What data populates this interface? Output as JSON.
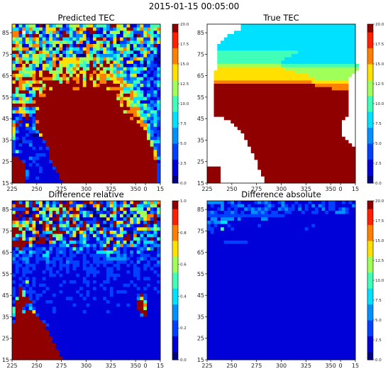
{
  "figure": {
    "suptitle": "2015-01-15 00:05:00"
  },
  "chart_data": [
    {
      "type": "heatmap",
      "title": "Predicted TEC",
      "xlabel": "",
      "ylabel": "",
      "x_ticks": [
        225,
        250,
        275,
        300,
        325,
        350,
        0,
        15
      ],
      "y_ticks": [
        15,
        25,
        35,
        45,
        55,
        65,
        75,
        85
      ],
      "colormap": "jet",
      "colorbar_range": [
        0,
        20
      ],
      "colorbar_ticks": [
        "0.0",
        "2.5",
        "5.0",
        "7.5",
        "10.0",
        "12.5",
        "15.0",
        "17.5",
        "20.0"
      ],
      "cells_x": 44,
      "cells_y": 48,
      "cells": [
        "hbfcfggbjahdeggbdgghdfghdfffdjjhgchbbdhccfff",
        "eecieiffgchhhjdccegjihjjhcbedcdfhgjjdfieifgi",
        "iij_dfcgbdhfidbjdfcihcbjjbbgbgggbfheccchefbg",
        "iicfjcjjfcbfcgcjjfcddhbaeedbedfbbgfeajcgifed",
        "gfgcheihcfchdcjeedfdghcbhjjibchjhcjdcghcchbf",
        "ehecgfdgdiefghfgffbfibebbgfdfjhaccdfefidegdh",
        "jigbbgiidfbdgahajdbjbaiihgibgcffddgbgcdbfdjb",
        "hfhiibdgagdgafibdfeechicfgehdcaggigaefiecfeb",
        "jjejdgejihgdfeadfhcddjiefcahfecdiefeabegibfb",
        "eicghdhgffieibgbedgbaahfjeddddefcfdaebchcdca",
        "jgiffeggegcchijhhhhiggggigeigfdfhbbdihgcddab",
        "dfijgjhgejdeibhhhhhhgfgjdgdjgjhfdbhhbbeaecba",
        "gbjhjfdgbhgeijghgegiffdjejgjjhdifabbdbcadccb",
        "fiigffdbbhefjfgjfgigjfgjjgjgfgfddgdegeegbcbe",
        "jjfggghjhjjggggjgfhjhhjjijhgjgeigdbeeecbcbcd",
        "ihhffgijhjjjhfjijgjhjgjijhiihigeffcghbbebbce",
        "jfijjjijjiiigfgigjiijfjhjgiifhhiidcddffbcdbc",
        "hjiihfhigjjjjjfjijjijhjjgjiijjhhigddffccdbde",
        "jjigfhjjjgjjjjjjjjjjjhjjhijjjjjjgihgecgcebcf",
        "jfihdbhhfijhjjjjjjiijjjjjjjjhiiiieefcebbbcbc",
        "jfjjjffjgjjjjjjjjjjjjjjjjjjjjjjjhffigfebcceb",
        "egffbcejiijjjjjjjjjjjjjjjjjjjjjigjjihffbecdb",
        "dcifhejjjjjjjjjjjjjjjjjjjjjjjjjgihgieeefcbbc",
        "gfhgfeijjjjjjjjjjjjjjjjjjjjjjjjjijhgegbbbdcf",
        "jjjijjjjjjjjjjjjjjjjjjjjjjjjjjjjhjhfgfegdcde",
        "cchfdcdhjjjjjjjjjjjjjjjjjjjjjjjjjjjiiidfedbe",
        "fihhfeejjjjjjjjjjjjjjjjjjjjjjjjjjgiiigfcdffc",
        "bbcijdbjjjjjjjjjjjjjjjjjjjjjjjjjjjjjiheegdec",
        "bdcbjbcjjjjjjjjjjjjjjjjjjjjjjjjjjjjijjhfdced",
        "ecjbbbcijjjjjjjjjjjjjjjjjjjjjjjjjjjjjhidbdec",
        "ijcbhbdjjjjjjjjjjjjjjjjjjjjjjjjjjjjjjjiifcfc",
        "hcbbccejjjjjjjjjjjjjjjjjjjjjjjjjjjjjjjjheccb",
        "hdbbbccdjjjjjjjjjjjjjjjjjjjjjjjjjjjjjjjjedcc",
        "gbbbcbaahjjjjjjjjjjjjjjjjjjjjjjjjjjjjjjjgdbc",
        "fcbcbbbbbjjjjjjjjjjjjjjjjjjjjjjjjjjjjjjjgccd",
        "cbacccbbbcjjjjjjjjjjjjjjjjjjjjjjjjjjjjjjjgee",
        "cbcbbdbbbbjjjjjjjjjjjjjjjjjjjjjjjjjjjjjjjgcc",
        "cbbbbbcbcbcjjjjjjjjjjjjjjjjjjjjjjjjjjjjjjjdc",
        "cfcbbbbbbbbjjjjjjjjjjjjjjjjjjjjjjjjjjjjjjjhc",
        "bbbbbbbcccbjjjjjjjjjjjjjjjjjjjjjjjjjjjjjjjhc",
        "jjbbbdccbbbjjjjjjjjjjjjjjjjjjjjjjjjjjjjjjjie",
        "jjjcbbcbbbbcjjjjjjjjjjjjjjjjjjjjjjjjjjjjjjjb",
        "jjjjbcbcbbbbjjjjjjjjjjjjjjjjjjjjjjjjjjjjjjjc",
        "jjjjbbbbcbbbcjjjjjjjjjjjjjjjjjjjjjjjjjjjjjjc",
        "jjjjdbbbcbbbbjjjjjjjjjjjjjjjjjjjjjjjjjjjjjjc",
        "jjjjdbbbbbbbbbjjjjjjjjjjjjjjjjjjjjjjjjjjjjjc",
        "jjjjcbbcbbbbbbjjjjjjjjjjjjjjjjjjjjjjjjjjjjjc",
        "jjjjbbbbbbbbbbbjjjjjjjjjjjjjjjjjjjjjjjjjjjjc"
      ]
    },
    {
      "type": "heatmap",
      "title": "True TEC",
      "xlabel": "",
      "ylabel": "",
      "x_ticks": [
        225,
        250,
        275,
        300,
        325,
        350,
        0,
        15
      ],
      "y_ticks": [
        15,
        25,
        35,
        45,
        55,
        65,
        75,
        85
      ],
      "colormap": "jet",
      "colorbar_range": [
        0,
        20
      ],
      "colorbar_ticks": [
        "0.0",
        "2.5",
        "5.0",
        "7.5",
        "10.0",
        "12.5",
        "15.0",
        "17.5",
        "20.0"
      ],
      "cells_x": 44,
      "cells_y": 48,
      "cells": [
        "__________eeeeeeeeeeeeeeeeeeeeeeeeeeeeeeeeee",
        "__________eeeeeeeeeeeeeeeeeeeeeeeeeeeeeeeeee",
        "________eeeeeeeeeeeeeeeeeeeeeeeeeeeeeeeeeeee",
        "______eeeeeeeeeeeeeeeeeeeeeeeeeeeeeeeeeeeeee",
        "_____eeeeeeeeeeeeeeeeeeeeeeeeeeeeeeeeeeeeeee",
        "____eeeeeeeeeeeeeeeeeeeeeeeeeeeeeeeeeeeeeeee",
        "___eeeeeeeeeeeeeeeeeeeeeeeeeeeeeeeeeeeeeeeee",
        "___eeeeeeeeeeeeeeeeeeeeeeeeeeeeeeeeeeeeeeeee",
        "___ffffffffffffffffffffffffeeeeeeeeeeeeeeeee",
        "___ffffffffffffffffffffffeeeeeeeeeeeeeeeeeee",
        "___ffffffffffffffffffffeeeeeeeeeeeeeeeeeeeee",
        "___fffffffffffffffffffeeeeeeeeeeeeeeeeeeeeee",
        "___gggggggggggggggggggfffffffffffffffffffffff",
        "___hhhhhhhhhhhhhhhhhhhhgggggggggggggggggggggg",
        "__hhhhhhhhhhhhhhhhhhhhhhhhgggggggggggggggggg",
        "__hhhhhhhhhhhhhhhhhhhhhhhhhhhhggggggggggggg_",
        "__hhhhhhhhhhhhhhhhhhhhhhhhhhhhhhgggggggggg__",
        "__iiiiiiiiiiiiiiiiiiiiiiiiiiiiihhhhhhhhhhh__",
        "__jjjjjjjjjjjjjjjjjjjjjjjjjjjjjjiiiiiiiiii__",
        "__jjjjjjjjjjjjjjjjjjjjjjjjjjjjjjjjjjjiiiii__",
        "__jjjjjjjjjjjjjjjjjjjjjjjjjjjjjjjjjjjjjjjj__",
        "__jjjjjjjjjjjjjjjjjjjjjjjjjjjjjjjjjjjjjjjj__",
        "__jjjjjjjjjjjjjjjjjjjjjjjjjjjjjjjjjjjjjjjj__",
        "__jjjjjjjjjjjjjjjjjjjjjjjjjjjjjjjjjjjjjjjj__",
        "__jjjjjjjjjjjjjjjjjjjjjjjjjjjjjjjjjjjjjjjj__",
        "__jjjjjjjjjjjjjjjjjjjjjjjjjjjjjjjjjjjjjjjj__",
        "__jjjjjjjjjjjjjjjjjjjjjjjjjjjjjjjjjjjjjjjj__",
        "__jjjjjjjjjjjjjjjjjjjjjjjjjjjjjjjjjjjjjjjj__",
        "_____jjjjjjjjjjjjjjjjjjjjjjjjjjjjjjjjjjjj___",
        "_______jjjjjjjjjjjjjjjjjjjjjjjjjjjjjjjjj____",
        "________jjjjjjjjjjjjjjjjjjjjjjjjjjjjjjjj____",
        "_________jjjjjjjjjjjjjjjjjjjjjjjjjjjjjjj____",
        "__________jjjjjjjjjjjjjjjjjjjjjjjjjjjjjj____",
        "___________jjjjjjjjjjjjjjjjjjjjjjjjjjjjj____",
        "___________jjjjjjjjjjjjjjjjjjjjjjjjjjjjjj___",
        "____________jjjjjjjjjjjjjjjjjjjjjjjjjjjjjj__",
        "____________jjjjjjjjjjjjjjjjjjjjjjjjjjjjjjj_",
        "_____________jjjjjjjjjjjjjjjjjjjjjjjjjjjjjjj",
        "_____________jjjjjjjjjjjjjjjjjjjjjjjjjjjjjjj",
        "______________jjjjjjjjjjjjjjjjjjjjjjjjjjjjjj",
        "______________jjjjjjjjjjjjjjjjjjjjjjjjjjjjjj",
        "_______________jjjjjjjjjjjjjjjjjjjjjjjjjjjjj",
        "_______________jjjjjjjjjjjjjjjjjjjjjjjjjjjjj",
        "jjjj___________jjjjjjjjjjjjjjjjjjjjjjjjjjjjj",
        "jjjj____________jjjjjjjjjjjjjjjjjjjjjjjjjjjj",
        "jjjj____________jjjjjjjjjjjjjjjjjjjjjjjjjjjj",
        "jjjj_____________jjjjjjjjjjjjjjjjjjjjjjjjjjj",
        "jjjj_____________jjjjjjjjjjjjjjjjjjjjjjjjjjj"
      ]
    },
    {
      "type": "heatmap",
      "title": "Difference relative",
      "xlabel": "",
      "ylabel": "",
      "x_ticks": [
        225,
        250,
        275,
        300,
        325,
        350,
        0,
        15
      ],
      "y_ticks": [
        15,
        25,
        35,
        45,
        55,
        65,
        75,
        85
      ],
      "colormap": "jet",
      "colorbar_range": [
        0,
        1
      ],
      "colorbar_ticks": [
        "0.0",
        "0.2",
        "0.4",
        "0.6",
        "0.8",
        "1.0"
      ],
      "cells_x": 44,
      "cells_y": 48,
      "cells": [
        "bjdbgcjehaebdcjbjicbbjjicjcbdiebcibhjjcgeiei",
        "ijjjgcjbhcgcebgjjccghdabihjbdhecdgfbjeeddggj",
        "ccccjaeiaeigggjfjijhcbaabgbeacfjhjbggffbhcbf",
        "gjbjiabbggafjfjdibjjdfdcaccbcjicbgbdcgggbdcg",
        "jbjbabjhcfchbjcfcgihbfdhaaggbgfbgadagbggiijd",
        "jjbcjdjjbegbjjejcjdfabbbcbaahbebbdjgdgdhicja",
        "ihdfhdgbgjdgabdcfaibdjcccjbdbcjhgjchdhbdjajc",
        "fgigfjhaajijcjfgejjdcjgbehbaadjecdgcbbbjcbfc",
        "jjfjdgiabjhjfjcdcedgjjdgeajdccbchbbbchhgiegf",
        "jjjgabgiadeejjjjfcgjhebeadhdjhgcfeaadccdcbeb",
        "jfdgbbcjccajfggbbdhadhcagcbebcdhgbjbiaeaeeda",
        "dcjgcgiajjcjbgfcbjbadecbbebcfibccjjbffcdbjbf",
        "jjjjjiajjjaifbcebeecdfbbbcdcgbjgcgaeaebeeeca",
        "jjjjbgcbbbbccbddfbjbcdecdbdfjbdeicdiecbdbcdd",
        "bdjcccbccdbdbcccbcfcebcbcbcjcbhcbcbbbcdcgdac",
        "cbedbedccbecbcdcbcbdcbcbbeeeffddbcbdbecbbbbc",
        "cdbccdbcbeebbcbcbccbbcbcccccebbdcdbcbbcccbbd",
        "dbcddbbcccdbcccbccbbbcbbccbcddddddcbbcdcbccb",
        "ccbcdbbcbbdccbcbdcccbccbccccccbcccbcbdbbcbbd",
        "bccbcccbbbcbcbcccbccbcbcbcbcbbccbbcbcbbccbcc",
        "bcbccbcbbbccbbcbcbcbbccccbbbccbcbbbbccbcbcbb",
        "bcbcccbbbcbcbcbbcbbbbbccccbbccbbbbcbccbbbbcb",
        "cbbcbbbbbbbccbcbbbbcbbcbcbbbccccbbbbccbbbbbc",
        "bbcbcbcbbcbbbbbbbbbbbcbbbbbbcbcbbbbbbcbccbbb",
        "cbbcgbcbbbbbbbbcbccbbccbcbbccbbbbbbcbbbbbbbc",
        "bbcbcbcbccbbbbcbbbbbbbcbbbcbbbbbbccbcbbbcbbb",
        "cbjcbcbbbbcbbbbbbbbbcbbbcbbcbcbbbbbbbcbcbbcb",
        "cbjfcccbbcbbbbcbbbbcbbcbbbbbbcbcccbbbbbbbbbc",
        "cbjfbcbccbbbcbbbbbbbcbcbbbbbbcbbbbbbbcjcbbbb",
        "bfjjjcbcbbbbbbbbccbbbcbbcbbcbbbbbbbbbdhcbbbb",
        "cjjjjjcbbbccbbbbbbbbbbbbbbbbcbbbbbbbbjjfbbbb",
        "bjjjcdbbbbbbbbbbbbcbbbcbbbbbbbbcbbcbbjjibbbb",
        "fjjcbecbbbbbcbbbbbbbbbbbbbbbbbbbbbbbbjjgbbbb",
        "fjjejjhbbbbbcbbbbbbbbcbbbbbbcbbbbbbbbbjjbbbb",
        "ejjjjjjcbbbbbbbbbbbbbbbbbbbbbbbbbbbbbbdjbbbb",
        "bjjjjjjjbbbbbbbbbbbbbbbbbbbbbbbbbbbbbbbbbbbb",
        "cjjjjjjjjcbbbbbbbbbbbbbbbbbbbbbbbbbbbbbbbbbb",
        "jjjjjjjjjjcbbbbbbbbbbbbbbbbbbbbbbbbbbbbbbbbb",
        "jjjjjjjjjjbbbbbbbbbbbbbbbbbbbbbbbbbbbbbbbbbb",
        "jjjjjjjjjjjbbbbbbbbbbbbbbbbbbbbbbbbbbbbbbbbb",
        "jjjjjjjjjjjbbbbbbbbbbbbbbbbbbbbbbbbbbbbbbbbb",
        "jjjjjjjjjjjjbbbbbbbbbbbbbbbbbbbbbbbbbbbbbbbb",
        "jjjjjjjjjjjjbbbbbbbbbbbbbbbbbbbbbbbbbbbbbbbb",
        "jjjjjjjjjjjjjbbbbbbbbbbbbbbbbbbbbbbbbbbbbbbb",
        "jjjjjjjjjjjjjbbbbbbbbbbbbbbbbbbbbbbbbbbbbbbb",
        "jjjjjjjjjjjjjjbbbbbbbbbbbbbbbbbbbbbbbbbbbbbb",
        "jjjjjjjjjjjjjjbbbbbbbbbbbbbbbbbbbbbbbbbbbbbb",
        "jjjjjjjjjjjjjjjbbbbbbbbbbbbbbbbbbbbbbbbbbbbb"
      ]
    },
    {
      "type": "heatmap",
      "title": "Difference absolute",
      "xlabel": "",
      "ylabel": "",
      "x_ticks": [
        225,
        250,
        275,
        300,
        325,
        350,
        0,
        15
      ],
      "y_ticks": [
        15,
        25,
        35,
        45,
        55,
        65,
        75,
        85
      ],
      "colormap": "jet",
      "colorbar_range": [
        0,
        20
      ],
      "colorbar_ticks": [
        "0.0",
        "2.5",
        "5.0",
        "7.5",
        "10.0",
        "12.5",
        "15.0",
        "17.5",
        "20.0"
      ],
      "cells_x": 44,
      "cells_y": 48,
      "cells": [
        "dddddbcdbcbbbbcdcdcbbcdbbbcbbbcbbbcbccbbcbcb",
        "bcbbdbbccddbcbbbbcdcbbdcbcbcbcbdbdcbccbbbbbd",
        "bbbcdbcbcbbdcdcdcdcbbdcdccbdbcbbcbdbccbcdcbb",
        "cdcbbccdcbcbbddcdcbccbbccbbbcbbccbbcbbdddcbb",
        "cccccccccccccccccccccccbbbbbbbbbbbbbbbbbbbbb",
        "bddbddddbdbbbbbbddbbbbbbbbbbbbbbbbbbbbbbbbbb",
        "dcddeebbbbbbbbbbbbbbbbbbbbbbbbbbbbbbbbbbbbbb",
        "cbcbbbcbbbbbbbbcbbbbbbbbbbbbbbbcbbbbbbbbbbbb",
        "ccbbfbbcbbbbbbbbbbbbbbbbbbbbbcbbbbbbbbbbbbbb",
        "bcbbbbbbbbbbbbbbbbbbbbbbbbbbbbbbbbbbbbbbbbbb",
        "bbbbbbbbbbbbbbbbbbbbbbbbbbbbbbbbbbbbbbbbbbbb",
        "bbbbbbbbbbbbbbbbbbbbbbbbbbbbbbbbbbbbbbbbbbbb",
        "bbbbbcccccccbbbbbbbbbbbbbbbbbbbbbbbbbbbbbbbb",
        "bbbbbbbbbbbbbbbbbbbbbbbbbbbbbbbbbbbbbbbbbbbb",
        "bbbbbbbbbbbbbbbbbbbbbbbbbbbbbbbbbbbbbbbbbbbb",
        "bbbbbbbbbbbbbbbbbbbbbbbbbbbbbbbbbbbbbbbbbbbb",
        "bbbbbbbbbbbbbbbbbbbbbbbbbbbbbbbbbbbbbbbbbbbb",
        "bbbbbbbbbbbbbbbbbbbbbbbbbbbbbbbbbbbbbbbbbbbb",
        "bbbbbbbbbbbbbbbbbbbbbbbbbbbbbbbbbbbbbbbbbbbb",
        "bbbbbbbbbbbbbbbbbbbbbbbbbbbbbbbbbbbbbbbbbbbb",
        "bbbbbbbbbbbbbbbbbbbbbbbbbbbbbbbbbbbbbbbbbbbb",
        "bbbbbbbbbbbbbbbbbbbbbbbbbbbbbbbbbbbbbbbbbbbb",
        "bbbbbbbbbbbbbbbbbbbbbbbbbbbbbbbbbbbbbbbbbbbb",
        "bbbbbbbbbbbbbbbbbbbbbbbbbbbbbbbbbbbbbbbbbbbb",
        "bbbbbbbbbbbbbbbbbbbbbbbbbbbbbbbbbbbbbbbbbbbb",
        "bbbbbbbbbbbbbbbbbbbbbbbbbbbbbbbbbbbbbbbbbbbb",
        "bbbbbbbbbbbbbbbbbbbbbbbbbbbbbbbbbbbbbbbbbbbb",
        "bbbbbbbbbbbbbbbbbbbbbbbbbbbbbbbbbbbbbbbbbbbb",
        "bbbbbbbbbbbbbbbbbbbbbbbbbbbbbbbbbbbbbbbbbbbb",
        "bbbbbbbbbbbbbbbbbbbbbbbbbbbbbbbbbbbbbbbbbbbb",
        "bbbbbbbbbbbbbbbbbbbbbbbbbbbbbbbbbbbbbbbbbbbb",
        "bbbbbbbbbbbbbbbbbbbbbbbbbbbbbbbbbbbbbbbbbbbb",
        "bbbbbbbbbbbbbbbbbbbbbbbbbbbbbbbbbbbbbbbbbbbb",
        "bbbbbbbbbbbbbbbbbbbbbbbbbbbbbbbbbbbbbbbbbbbb",
        "bbbbbbbbbbbbbbbbbbbbbbbbbbbbbbbbbbbbbbbbbbbb",
        "bbbbbbbbbbbbbbbbbbbbbbbbbbbbbbbbbbbbbbbbbbbb",
        "bbbbbbbbbbbbbbbbbbbbbbbbbbbbbbbbbbbbbbbbbbbb",
        "bbbbbbbbbbbbbbbbbbbbbbbbbbbbbbbbbbbbbbbbbbbb",
        "bbbbbbbbbbbbbbbbbbbbbbbbbbbbbbbbbbbbbbbbbbbb",
        "bbbbbbbbbbbbbbbbbbbbbbbbbbbbbbbbbbbbbbbbbbbb",
        "bbbbbbbbbbbbbbbbbbbbbbbbbbbbbbbbbbbbbbbbbbbb",
        "bbbbbbbbbbbbbbbbbbbbbbbbbbbbbbbbbbbbbbbbbbbb",
        "bbbbbbbbbbbbbbbbbbbbbbbbbbbbbbbbbbbbbbbbbbbb",
        "bbbbbbbbbbbbbbbbbbbbbbbbbbbbbbbbbbbbbbbbbbbb",
        "bbbbbbbbbbbbbbbbbbbbbbbbbbbbbbbbbbbbbbbbbbbb",
        "bbbbbbbbbbbbbbbbbbbbbbbbbbbbbbbbbbbbbbbbbbbb",
        "bbbbbbbbbbbbbbbbbbbbbbbbbbbbbbbbbbbbbbbbbbbb",
        "bbbbbbbbbbbbbbbbbbbbbbbbbbbbbbbbbbbbbbbbbbbb"
      ]
    }
  ]
}
